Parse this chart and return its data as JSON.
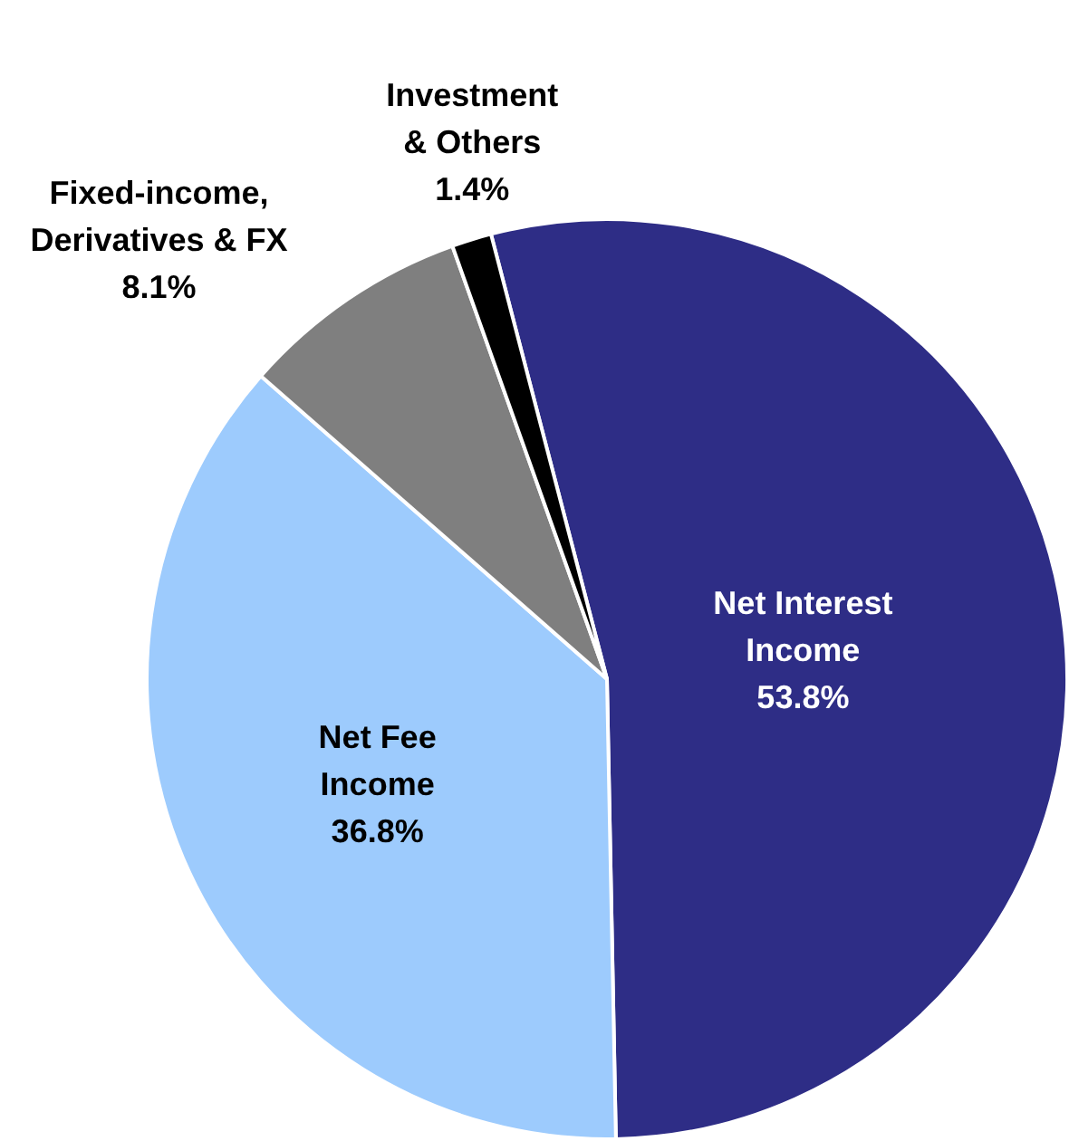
{
  "chart_data": {
    "type": "pie",
    "categories": [
      "Net Interest Income",
      "Net Fee Income",
      "Fixed-income, Derivatives & FX",
      "Investment & Others"
    ],
    "values": [
      53.8,
      36.8,
      8.1,
      1.4
    ],
    "value_labels": [
      "53.8%",
      "36.8%",
      "8.1%",
      "1.4%"
    ],
    "colors": [
      "#2e2d86",
      "#9dcbfd",
      "#7f7f7f",
      "#000000"
    ]
  }
}
